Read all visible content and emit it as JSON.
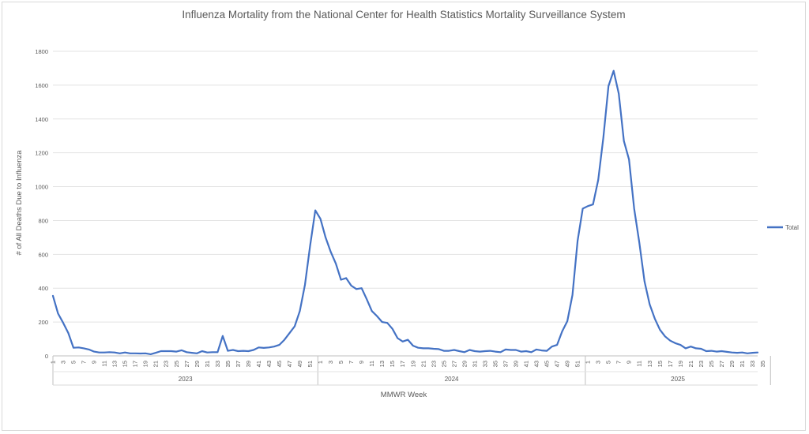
{
  "chart_data": {
    "type": "line",
    "title": "Influenza Mortality from the National Center for Health Statistics Mortality Surveillance System",
    "xlabel": "MMWR Week",
    "ylabel": "# of All Deaths Due to Influenza",
    "ylim": [
      0,
      1800
    ],
    "yticks": [
      0,
      200,
      400,
      600,
      800,
      1000,
      1200,
      1400,
      1600,
      1800
    ],
    "grid": true,
    "legend_position": "right",
    "series_color": "#4472c4",
    "years": [
      {
        "label": "2023",
        "weeks": 52
      },
      {
        "label": "2024",
        "weeks": 52
      },
      {
        "label": "2025",
        "weeks": 36
      }
    ],
    "series": [
      {
        "name": "Total",
        "values": [
          355,
          250,
          195,
          135,
          48,
          50,
          45,
          38,
          25,
          20,
          20,
          22,
          20,
          15,
          20,
          15,
          15,
          14,
          15,
          10,
          18,
          28,
          28,
          28,
          25,
          33,
          22,
          18,
          15,
          28,
          20,
          22,
          22,
          118,
          30,
          35,
          28,
          30,
          28,
          35,
          50,
          47,
          50,
          55,
          65,
          95,
          135,
          175,
          265,
          420,
          650,
          860,
          810,
          700,
          615,
          545,
          450,
          460,
          415,
          395,
          400,
          335,
          265,
          235,
          200,
          195,
          160,
          105,
          85,
          95,
          60,
          48,
          45,
          45,
          42,
          40,
          30,
          30,
          35,
          28,
          22,
          35,
          28,
          25,
          28,
          30,
          25,
          22,
          38,
          35,
          35,
          25,
          28,
          22,
          38,
          32,
          30,
          55,
          65,
          145,
          205,
          360,
          680,
          870,
          885,
          895,
          1040,
          1290,
          1595,
          1685,
          1550,
          1270,
          1160,
          870,
          670,
          440,
          305,
          220,
          155,
          115,
          90,
          75,
          65,
          45,
          55,
          45,
          42,
          28,
          30,
          25,
          28,
          24,
          20,
          18,
          20,
          15,
          18,
          20
        ]
      }
    ]
  }
}
